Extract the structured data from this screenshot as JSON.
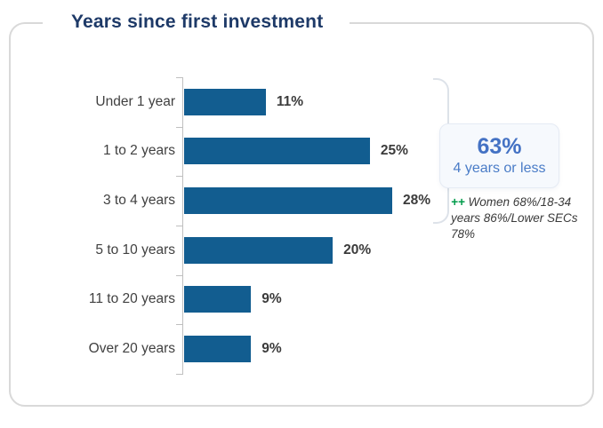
{
  "chart_data": {
    "type": "bar",
    "orientation": "horizontal",
    "title": "Years since first investment",
    "categories": [
      "Under 1 year",
      "1 to 2 years",
      "3 to 4 years",
      "5 to 10 years",
      "11 to 20 years",
      "Over 20 years"
    ],
    "values": [
      11,
      25,
      28,
      20,
      9,
      9
    ],
    "value_labels": [
      "11%",
      "25%",
      "28%",
      "20%",
      "9%",
      "9%"
    ],
    "value_suffix": "%",
    "xlim": [
      0,
      30
    ],
    "grid": false,
    "legend": false,
    "bar_color": "#125d90",
    "axis_color": "#bfbfbf"
  },
  "header": {
    "title": "Years since first investment",
    "title_color": "#1e3a68"
  },
  "callout": {
    "value": "63%",
    "label": "4 years or less",
    "value_color": "#4472c4"
  },
  "annotation": {
    "marker": "++",
    "marker_color": "#009b4a",
    "text": "Women 68%/18-34 years 86%/Lower SECs 78%"
  }
}
